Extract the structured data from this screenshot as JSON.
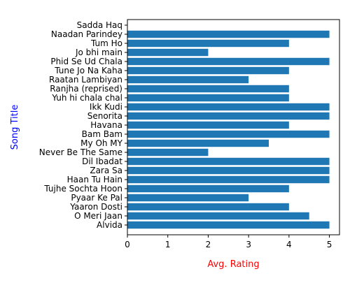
{
  "chart_data": {
    "type": "bar",
    "orientation": "horizontal",
    "categories": [
      "Alvida",
      "O Meri Jaan",
      "Yaaron Dosti",
      "Pyaar Ke Pal",
      "Tujhe Sochta Hoon",
      "Haan Tu Hain",
      "Zara Sa",
      "Dil Ibadat",
      "Never Be The Same",
      "My Oh MY",
      "Bam Bam",
      "Havana",
      "Senorita",
      "Ikk Kudi",
      "Yuh hi chala chal",
      "Ranjha (reprised)",
      "Raatan Lambiyan",
      "Tune Jo Na Kaha",
      "Phid Se Ud Chala ",
      "Jo bhi main",
      "Tum Ho",
      "Naadan Parindey",
      "Sadda Haq"
    ],
    "values": [
      5,
      4.5,
      4,
      3,
      4,
      5,
      5,
      5,
      2,
      3.5,
      5,
      4,
      5,
      5,
      4,
      4,
      3,
      4,
      5,
      2,
      4,
      5,
      0
    ],
    "xlabel": "Avg. Rating",
    "ylabel": "Song Title",
    "xlabel_color": "#ff0000",
    "ylabel_color": "#0000ff",
    "bar_color": "#1f77b4",
    "xlim": [
      0,
      5.25
    ],
    "xticks": [
      0,
      1,
      2,
      3,
      4,
      5
    ],
    "grid": false
  }
}
